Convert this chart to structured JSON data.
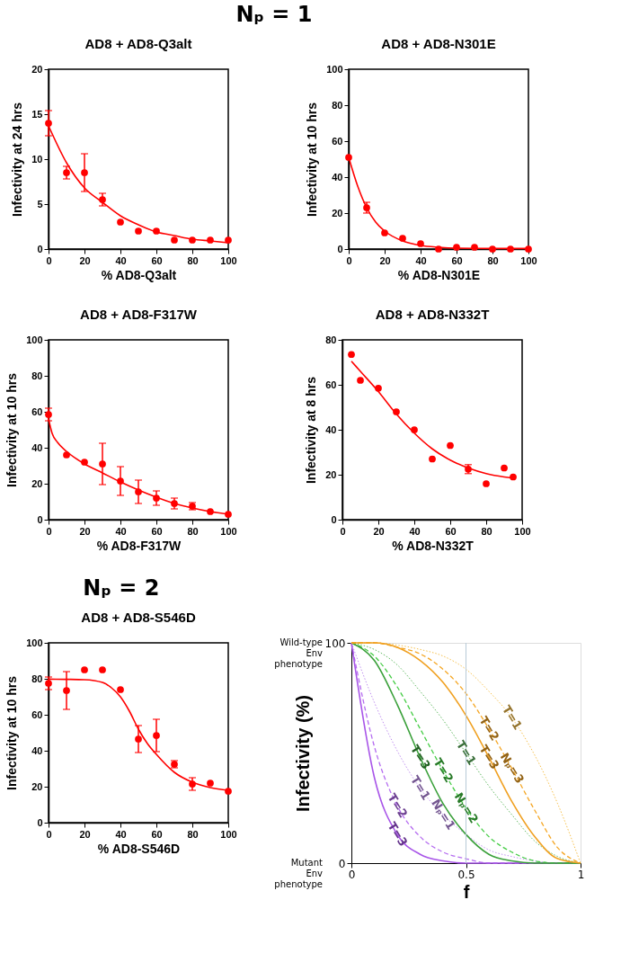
{
  "chart_data": [
    {
      "type": "scatter",
      "title": "AD8 + AD8-Q3alt",
      "xlabel": "% AD8-Q3alt",
      "ylabel": "Infectivity at 24 hrs",
      "xlim": [
        0,
        100
      ],
      "ylim": [
        0,
        20
      ],
      "xticks": [
        0,
        20,
        40,
        60,
        80,
        100
      ],
      "yticks": [
        0,
        5,
        10,
        15,
        20
      ],
      "annotations": [
        "Nₚ = 1"
      ],
      "series": [
        {
          "type": "scatter",
          "marker": "circle",
          "color": "#ff0000",
          "x": [
            0,
            10,
            20,
            30,
            40,
            50,
            60,
            70,
            80,
            90,
            100
          ],
          "values": [
            14,
            8.5,
            8.5,
            5.5,
            3,
            2,
            2,
            1,
            1,
            1,
            1
          ],
          "errors": [
            1.4,
            0.7,
            2.1,
            0.7,
            null,
            null,
            null,
            null,
            null,
            null,
            null
          ]
        },
        {
          "type": "line",
          "line_style": "solid",
          "color": "#ff0000",
          "x": [
            0,
            10,
            20,
            30,
            40,
            50,
            60,
            70,
            80,
            90,
            100
          ],
          "values": [
            13.7,
            9.6,
            6.8,
            5.2,
            3.7,
            2.7,
            1.9,
            1.5,
            1.1,
            0.9,
            0.7
          ]
        }
      ]
    },
    {
      "type": "scatter",
      "title": "AD8 + AD8-N301E",
      "xlabel": "% AD8-N301E",
      "ylabel": "Infectivity at 10 hrs",
      "xlim": [
        0,
        100
      ],
      "ylim": [
        0,
        100
      ],
      "xticks": [
        0,
        20,
        40,
        60,
        80,
        100
      ],
      "yticks": [
        0,
        20,
        40,
        60,
        80,
        100
      ],
      "series": [
        {
          "type": "scatter",
          "marker": "circle",
          "color": "#ff0000",
          "x": [
            0,
            10,
            20,
            30,
            40,
            50,
            60,
            70,
            80,
            90,
            100
          ],
          "values": [
            51,
            23,
            9,
            6,
            3,
            0,
            1,
            1,
            0,
            0,
            0
          ],
          "errors": [
            null,
            3,
            null,
            null,
            null,
            null,
            null,
            null,
            null,
            null,
            null
          ]
        },
        {
          "type": "line",
          "line_style": "solid",
          "color": "#ff0000",
          "x": [
            0,
            5,
            10,
            15,
            20,
            30,
            40,
            50,
            60,
            80,
            100
          ],
          "values": [
            51,
            35,
            23,
            15,
            10,
            4.5,
            2,
            1,
            0.5,
            0.3,
            0.3
          ]
        }
      ]
    },
    {
      "type": "scatter",
      "title": "AD8 + AD8-F317W",
      "xlabel": "% AD8-F317W",
      "ylabel": "Infectivity at 10 hrs",
      "xlim": [
        0,
        100
      ],
      "ylim": [
        0,
        100
      ],
      "xticks": [
        0,
        20,
        40,
        60,
        80,
        100
      ],
      "yticks": [
        0,
        20,
        40,
        60,
        80,
        100
      ],
      "series": [
        {
          "type": "scatter",
          "marker": "circle",
          "color": "#ff0000",
          "x": [
            0,
            10,
            20,
            30,
            40,
            50,
            60,
            70,
            80,
            90,
            100
          ],
          "values": [
            58.5,
            36,
            32,
            31,
            21.5,
            15.5,
            12,
            9,
            7.5,
            4.5,
            3
          ],
          "errors": [
            3.5,
            null,
            null,
            11.5,
            8,
            6.5,
            4,
            3,
            2,
            null,
            null
          ]
        },
        {
          "type": "line",
          "line_style": "solid",
          "color": "#ff0000",
          "x": [
            0,
            2,
            5,
            10,
            20,
            30,
            40,
            50,
            60,
            70,
            80,
            90,
            100
          ],
          "values": [
            56,
            48,
            43,
            38,
            31,
            26,
            21,
            16.5,
            12.5,
            9,
            6.5,
            4.5,
            3
          ]
        }
      ]
    },
    {
      "type": "scatter",
      "title": "AD8 + AD8-N332T",
      "xlabel": "% AD8-N332T",
      "ylabel": "Infectivity at 8 hrs",
      "xlim": [
        0,
        100
      ],
      "ylim": [
        0,
        80
      ],
      "xticks": [
        0,
        20,
        40,
        60,
        80,
        100
      ],
      "yticks": [
        0,
        20,
        40,
        60,
        80
      ],
      "series": [
        {
          "type": "scatter",
          "marker": "circle",
          "color": "#ff0000",
          "x": [
            5,
            10,
            20,
            30,
            40,
            50,
            60,
            70,
            80,
            90,
            95
          ],
          "values": [
            73.5,
            62,
            58.5,
            48,
            40,
            27,
            33,
            22.5,
            16,
            23,
            19
          ],
          "errors": [
            null,
            null,
            null,
            null,
            null,
            null,
            null,
            2,
            null,
            null,
            null
          ]
        },
        {
          "type": "line",
          "line_style": "solid",
          "color": "#ff0000",
          "x": [
            5,
            10,
            20,
            30,
            40,
            50,
            60,
            70,
            80,
            90,
            95
          ],
          "values": [
            70.5,
            66,
            57,
            47,
            38.5,
            31.5,
            26.5,
            23,
            20.5,
            19,
            18.5
          ]
        }
      ]
    },
    {
      "type": "scatter",
      "title": "AD8 + AD8-S546D",
      "xlabel": "% AD8-S546D",
      "ylabel": "Infectivity at 10 hrs",
      "xlim": [
        0,
        100
      ],
      "ylim": [
        0,
        100
      ],
      "xticks": [
        0,
        20,
        40,
        60,
        80,
        100
      ],
      "yticks": [
        0,
        20,
        40,
        60,
        80,
        100
      ],
      "annotations": [
        "Nₚ = 2"
      ],
      "series": [
        {
          "type": "scatter",
          "marker": "circle",
          "color": "#ff0000",
          "x": [
            0,
            10,
            20,
            30,
            40,
            50,
            60,
            70,
            80,
            90,
            100
          ],
          "values": [
            77.5,
            73.5,
            85,
            85,
            74,
            46.5,
            48.5,
            32.5,
            21.5,
            22,
            17.5
          ],
          "errors": [
            3.5,
            10.5,
            null,
            null,
            null,
            7.5,
            9,
            2,
            3.5,
            null,
            null
          ]
        },
        {
          "type": "line",
          "line_style": "solid",
          "color": "#ff0000",
          "x": [
            0,
            10,
            20,
            30,
            35,
            40,
            45,
            50,
            55,
            60,
            70,
            80,
            90,
            100
          ],
          "values": [
            79.8,
            79.7,
            79.5,
            78,
            75,
            70,
            62,
            52,
            44,
            38,
            28,
            22.5,
            19.5,
            18
          ]
        }
      ]
    },
    {
      "type": "line",
      "xlabel": "f",
      "ylabel": "Infectivity (%)",
      "xlim": [
        0,
        1
      ],
      "ylim": [
        0,
        100
      ],
      "xticks": [
        0,
        0.5,
        1
      ],
      "yticks": [
        0,
        100
      ],
      "x": [
        0,
        0.1,
        0.2,
        0.3,
        0.4,
        0.5,
        0.6,
        0.7,
        0.8,
        0.9,
        1
      ],
      "series": [
        {
          "color": "#c08ff0",
          "line_style": "dotted",
          "values": [
            100,
            73,
            51,
            34,
            22,
            13,
            6,
            3,
            1,
            0,
            0
          ]
        },
        {
          "color": "#b56cf0",
          "line_style": "dashed",
          "values": [
            100,
            53,
            26,
            12,
            5,
            2,
            0,
            0,
            0,
            0,
            0
          ]
        },
        {
          "color": "#a855e8",
          "line_style": "solid",
          "values": [
            100,
            39,
            13,
            4,
            1,
            0,
            0,
            0,
            0,
            0,
            0
          ]
        },
        {
          "color": "#5fb85f",
          "line_style": "dotted",
          "values": [
            100,
            97,
            90,
            78,
            65,
            50,
            35,
            22,
            10,
            3,
            0
          ]
        },
        {
          "color": "#44cc44",
          "line_style": "dashed",
          "values": [
            100,
            94,
            80,
            61,
            42,
            25,
            12,
            5,
            1,
            0,
            0
          ]
        },
        {
          "color": "#3aa03a",
          "line_style": "solid",
          "values": [
            100,
            92,
            72,
            48,
            27,
            13,
            4,
            1,
            0,
            0,
            0
          ]
        },
        {
          "color": "#f7c04a",
          "line_style": "dotted",
          "values": [
            100,
            100,
            99,
            97,
            94,
            88,
            78,
            66,
            49,
            27,
            0
          ]
        },
        {
          "color": "#f5a623",
          "line_style": "dashed",
          "values": [
            100,
            100,
            98,
            95,
            88,
            77,
            61,
            43,
            24,
            7,
            0
          ]
        },
        {
          "color": "#f0a020",
          "line_style": "solid",
          "values": [
            100,
            100,
            98,
            92,
            82,
            67,
            48,
            28,
            12,
            2,
            0
          ]
        }
      ],
      "ref_lines": [
        {
          "axis": "x",
          "value": 0.5,
          "color": "#b8cad8"
        }
      ],
      "annotations": [
        "Wild-type Env phenotype",
        "Mutant Env phenotype",
        {
          "text": "T=1",
          "x": 0.3,
          "y": 34
        },
        {
          "text": "T=2",
          "x": 0.2,
          "y": 26
        },
        {
          "text": "T=3",
          "x": 0.2,
          "y": 13
        },
        {
          "text": "Nₚ=1",
          "x": 0.4,
          "y": 22
        },
        {
          "text": "T=1",
          "x": 0.5,
          "y": 50
        },
        {
          "text": "T=2",
          "x": 0.4,
          "y": 42
        },
        {
          "text": "T=3",
          "x": 0.3,
          "y": 48
        },
        {
          "text": "Nₚ=2",
          "x": 0.5,
          "y": 25
        },
        {
          "text": "T=1",
          "x": 0.7,
          "y": 66
        },
        {
          "text": "T=2",
          "x": 0.6,
          "y": 61
        },
        {
          "text": "T=3",
          "x": 0.6,
          "y": 48
        },
        {
          "text": "Nₚ=3",
          "x": 0.7,
          "y": 43
        }
      ]
    }
  ]
}
